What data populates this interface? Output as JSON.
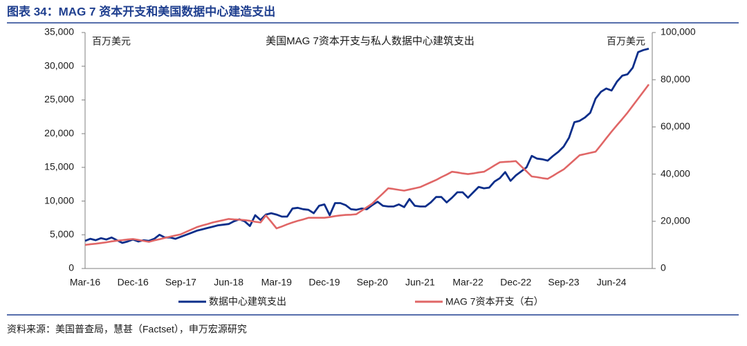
{
  "header": {
    "title": "图表 34：MAG 7 资本开支和美国数据中心建造支出"
  },
  "source": "资料来源：美国普查局，慧甚（Factset），申万宏源研究",
  "chart_data": {
    "type": "line",
    "title": "美国MAG 7资本开支与私人数据中心建筑支出",
    "y_label": "百万美元",
    "y2_label": "百万美元",
    "categories": [
      "Mar-16",
      null,
      null,
      null,
      null,
      null,
      null,
      null,
      null,
      "Dec-16",
      null,
      null,
      null,
      null,
      null,
      null,
      null,
      null,
      "Sep-17",
      null,
      null,
      null,
      null,
      null,
      null,
      null,
      null,
      "Jun-18",
      null,
      null,
      null,
      null,
      null,
      null,
      null,
      null,
      "Mar-19",
      null,
      null,
      null,
      null,
      null,
      null,
      null,
      null,
      "Dec-19",
      null,
      null,
      null,
      null,
      null,
      null,
      null,
      null,
      "Sep-20",
      null,
      null,
      null,
      null,
      null,
      null,
      null,
      null,
      "Jun-21",
      null,
      null,
      null,
      null,
      null,
      null,
      null,
      null,
      "Mar-22",
      null,
      null,
      null,
      null,
      null,
      null,
      null,
      null,
      "Dec-22",
      null,
      null,
      null,
      null,
      null,
      null,
      null,
      null,
      "Sep-23",
      null,
      null,
      null,
      null,
      null,
      null,
      null,
      null,
      "Jun-24",
      null,
      null,
      null,
      null,
      null,
      null,
      null
    ],
    "ylim": [
      0,
      35000
    ],
    "yticks": [
      0,
      {
        "value": 5000,
        "label": "5,000"
      },
      {
        "value": 10000,
        "label": "10,000"
      },
      {
        "value": 15000,
        "label": "15,000"
      },
      {
        "value": 20000,
        "label": "20,000"
      },
      {
        "value": 25000,
        "label": "25,000"
      },
      {
        "value": 30000,
        "label": "30,000"
      },
      {
        "value": 35000,
        "label": "35,000"
      }
    ],
    "y2lim": [
      0,
      100000
    ],
    "y2ticks": [
      0,
      {
        "value": 20000,
        "label": "20,000"
      },
      {
        "value": 40000,
        "label": "40,000"
      },
      {
        "value": 60000,
        "label": "60,000"
      },
      {
        "value": 80000,
        "label": "80,000"
      },
      {
        "value": 100000,
        "label": "100,000"
      }
    ],
    "grid": false,
    "series": [
      {
        "name": "数据中心建筑支出",
        "color": "#0b2e8a",
        "axis": "y",
        "values": [
          4100,
          4400,
          4200,
          4500,
          4300,
          4600,
          4200,
          3800,
          4000,
          4300,
          4000,
          4200,
          4100,
          4400,
          5000,
          4600,
          4600,
          4400,
          4700,
          5000,
          5300,
          5600,
          5800,
          6000,
          6200,
          6400,
          6500,
          6600,
          7000,
          7300,
          7000,
          6300,
          7900,
          7200,
          8000,
          8200,
          8000,
          7700,
          7700,
          8900,
          9000,
          8800,
          8700,
          8200,
          9300,
          9500,
          7900,
          9700,
          9700,
          9400,
          8800,
          8700,
          8900,
          8800,
          9400,
          9900,
          9300,
          9200,
          9200,
          9500,
          9100,
          10300,
          9300,
          9200,
          9200,
          9800,
          10600,
          10600,
          9800,
          10500,
          11300,
          11300,
          10500,
          11300,
          12100,
          11900,
          12000,
          12900,
          13400,
          14300,
          13000,
          13800,
          14400,
          15000,
          16700,
          16300,
          16200,
          16000,
          16700,
          17300,
          18100,
          19400,
          21700,
          21900,
          22400,
          23100,
          25200,
          26200,
          26700,
          26400,
          27700,
          28600,
          28800,
          29800,
          32100,
          32400,
          32600
        ]
      },
      {
        "name": "MAG 7资本开支（右）",
        "color": "#e06666",
        "axis": "y2",
        "values": [
          10000,
          10300,
          10500,
          10800,
          11100,
          11500,
          11800,
          12000,
          12300,
          12500,
          12100,
          11700,
          11300,
          11900,
          12400,
          13000,
          13500,
          14000,
          14500,
          15500,
          16500,
          17500,
          18200,
          18800,
          19500,
          20000,
          20500,
          21000,
          20800,
          20700,
          20500,
          20200,
          19800,
          19500,
          22500,
          19800,
          17000,
          17800,
          18700,
          19500,
          20200,
          20800,
          21500,
          21500,
          21500,
          21500,
          21800,
          22200,
          22500,
          22700,
          22800,
          23000,
          24500,
          26000,
          27500,
          29700,
          31800,
          34000,
          33700,
          33300,
          33000,
          33500,
          34000,
          34500,
          35500,
          36500,
          37500,
          38700,
          39800,
          41000,
          40700,
          40300,
          40000,
          40300,
          40700,
          41000,
          42300,
          43700,
          45000,
          45200,
          45300,
          45500,
          43300,
          41200,
          39000,
          38700,
          38300,
          38000,
          39300,
          40700,
          42000,
          44000,
          46000,
          48000,
          48500,
          49000,
          49500,
          52300,
          55200,
          58000,
          60700,
          63300,
          66000,
          69000,
          72000,
          75000,
          78000
        ]
      }
    ]
  }
}
